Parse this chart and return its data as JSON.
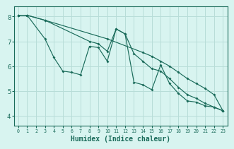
{
  "line_straight_x": [
    0,
    1,
    3,
    10,
    14,
    15,
    16,
    17,
    18,
    19,
    20,
    21,
    22,
    23
  ],
  "line_straight_y": [
    8.05,
    8.05,
    7.85,
    7.1,
    6.55,
    6.4,
    6.2,
    6.0,
    5.75,
    5.5,
    5.3,
    5.1,
    4.85,
    4.2
  ],
  "line_zigzag_x": [
    0,
    1,
    3,
    4,
    5,
    6,
    7,
    8,
    9,
    10,
    11,
    12,
    13,
    14,
    15,
    16,
    17,
    18,
    19,
    20,
    21,
    22,
    23
  ],
  "line_zigzag_y": [
    8.05,
    8.05,
    7.1,
    6.35,
    5.8,
    5.75,
    5.65,
    6.8,
    6.75,
    6.2,
    7.5,
    7.3,
    5.35,
    5.25,
    5.05,
    6.05,
    5.3,
    4.9,
    4.6,
    4.55,
    4.4,
    4.35,
    4.2
  ],
  "line_middle_x": [
    0,
    1,
    3,
    8,
    9,
    10,
    11,
    12,
    13,
    14,
    15,
    16,
    17,
    18,
    19,
    20,
    21,
    22,
    23
  ],
  "line_middle_y": [
    8.05,
    8.05,
    7.85,
    7.0,
    6.9,
    6.6,
    7.5,
    7.3,
    6.5,
    6.2,
    5.9,
    5.8,
    5.5,
    5.15,
    4.85,
    4.7,
    4.5,
    4.35,
    4.2
  ],
  "line_color": "#1a6b5a",
  "bg_color": "#d8f4f0",
  "grid_color": "#b8ddd8",
  "xlabel": "Humidex (Indice chaleur)",
  "ylim": [
    3.6,
    8.4
  ],
  "xlim": [
    -0.5,
    23.5
  ],
  "yticks": [
    4,
    5,
    6,
    7,
    8
  ],
  "xticks": [
    0,
    1,
    2,
    3,
    4,
    5,
    6,
    7,
    8,
    9,
    10,
    11,
    12,
    13,
    14,
    15,
    16,
    17,
    18,
    19,
    20,
    21,
    22,
    23
  ]
}
